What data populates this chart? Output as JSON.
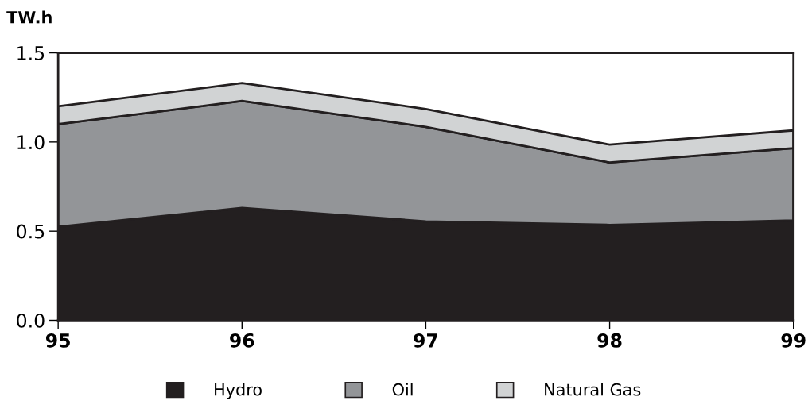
{
  "chart_data": {
    "type": "area",
    "ylabel": "TW.h",
    "stacked": true,
    "categories": [
      "95",
      "96",
      "97",
      "98",
      "99"
    ],
    "series": [
      {
        "name": "Hydro",
        "color": "#231f20",
        "values": [
          0.525,
          0.63,
          0.555,
          0.535,
          0.56
        ]
      },
      {
        "name": "Oil",
        "color": "#939598",
        "values": [
          0.575,
          0.6,
          0.53,
          0.35,
          0.405
        ]
      },
      {
        "name": "Natural Gas",
        "color": "#d1d3d4",
        "values": [
          0.1,
          0.1,
          0.1,
          0.1,
          0.1
        ]
      }
    ],
    "ylim": [
      0,
      1.5
    ],
    "yticks": [
      {
        "value": 0,
        "label": "0.0"
      },
      {
        "value": 0.5,
        "label": "0.5"
      },
      {
        "value": 1.0,
        "label": "1.0"
      },
      {
        "value": 1.5,
        "label": "1.5"
      }
    ],
    "grid": false,
    "legend": "bottom"
  }
}
